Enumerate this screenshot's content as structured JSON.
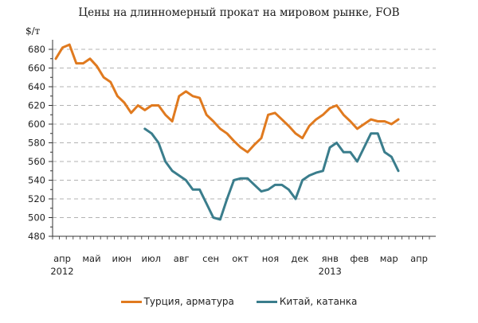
{
  "chart_data": {
    "type": "line",
    "title": "Цены на длинномерный прокат на мировом рынке, FOB",
    "ylabel": "$/т",
    "xlabel": "",
    "ylim": [
      480,
      690
    ],
    "yticks": [
      480,
      500,
      520,
      540,
      560,
      580,
      600,
      620,
      640,
      660,
      680
    ],
    "grid": true,
    "legend_position": "bottom",
    "x_month_labels": [
      {
        "label": "апр",
        "year": "2012",
        "pos": 0
      },
      {
        "label": "май",
        "year": "",
        "pos": 4.3
      },
      {
        "label": "июн",
        "year": "",
        "pos": 8.7
      },
      {
        "label": "июл",
        "year": "",
        "pos": 13
      },
      {
        "label": "авг",
        "year": "",
        "pos": 17.4
      },
      {
        "label": "сен",
        "year": "",
        "pos": 21.7
      },
      {
        "label": "окт",
        "year": "",
        "pos": 26
      },
      {
        "label": "ноя",
        "year": "",
        "pos": 30.4
      },
      {
        "label": "дек",
        "year": "",
        "pos": 34.7
      },
      {
        "label": "янв",
        "year": "2013",
        "pos": 39.1
      },
      {
        "label": "фев",
        "year": "",
        "pos": 43.4
      },
      {
        "label": "мар",
        "year": "",
        "pos": 47.7
      },
      {
        "label": "апр",
        "year": "",
        "pos": 52.1
      }
    ],
    "series": [
      {
        "name": "Турция, арматура",
        "color": "#E07A1F",
        "start_week": 0,
        "values": [
          670,
          682,
          685,
          665,
          665,
          670,
          662,
          650,
          645,
          630,
          623,
          612,
          620,
          615,
          620,
          620,
          610,
          603,
          630,
          635,
          630,
          628,
          610,
          603,
          595,
          590,
          582,
          575,
          570,
          578,
          585,
          610,
          612,
          605,
          598,
          590,
          585,
          598,
          605,
          610,
          617,
          620,
          610,
          603,
          595,
          600,
          605,
          603,
          603,
          600,
          605
        ]
      },
      {
        "name": "Китай, катанка",
        "color": "#3A7D8C",
        "start_week": 13,
        "values": [
          595,
          590,
          580,
          560,
          550,
          545,
          540,
          530,
          530,
          515,
          500,
          498,
          520,
          540,
          542,
          542,
          535,
          528,
          530,
          535,
          535,
          530,
          520,
          540,
          545,
          548,
          550,
          575,
          580,
          570,
          570,
          560,
          575,
          590,
          590,
          570,
          565,
          550
        ]
      }
    ]
  }
}
